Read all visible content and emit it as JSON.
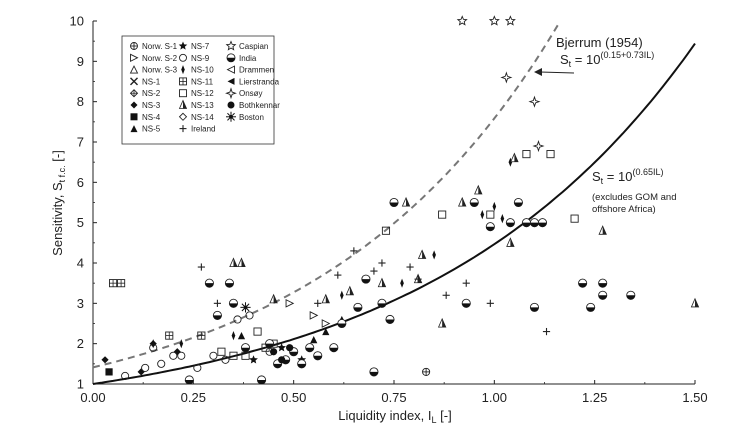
{
  "chart_data": {
    "type": "scatter",
    "xlabel": "Liquidity index, I",
    "xlabel_sub": "L",
    "xlabel_unit": " [-]",
    "ylabel": "Sensitivity, S",
    "ylabel_sub": "t f.c.",
    "ylabel_unit": " [-]",
    "xlim": [
      0,
      1.5
    ],
    "ylim": [
      1,
      10
    ],
    "x_ticks": [
      "0.00",
      "0.25",
      "0.50",
      "0.75",
      "1.00",
      "1.25",
      "1.50"
    ],
    "y_ticks": [
      "1",
      "2",
      "3",
      "4",
      "5",
      "6",
      "7",
      "8",
      "9",
      "10"
    ],
    "grid": false,
    "legend_position": "top-left",
    "legend": {
      "col1": [
        {
          "label": "Norw. S-1",
          "marker": "circle-plus"
        },
        {
          "label": "Norw. S-2",
          "marker": "triangle-right"
        },
        {
          "label": "Norw. S-3",
          "marker": "triangle-up"
        },
        {
          "label": "NS-1",
          "marker": "x"
        },
        {
          "label": "NS-2",
          "marker": "diamond-plus"
        },
        {
          "label": "NS-3",
          "marker": "diamond-filled"
        },
        {
          "label": "NS-4",
          "marker": "square-filled"
        },
        {
          "label": "NS-5",
          "marker": "triangle-filled"
        }
      ],
      "col2": [
        {
          "label": "NS-7",
          "marker": "star-filled"
        },
        {
          "label": "NS-9",
          "marker": "circle-open"
        },
        {
          "label": "NS-10",
          "marker": "diamond-thin"
        },
        {
          "label": "NS-11",
          "marker": "square-grid"
        },
        {
          "label": "NS-12",
          "marker": "square-open"
        },
        {
          "label": "NS-13",
          "marker": "triangle-half"
        },
        {
          "label": "NS-14",
          "marker": "diamond-open"
        },
        {
          "label": "Ireland",
          "marker": "plus"
        }
      ],
      "col3": [
        {
          "label": "Caspian",
          "marker": "star-open"
        },
        {
          "label": "India",
          "marker": "circle-half"
        },
        {
          "label": "Drammen",
          "marker": "triangle-left"
        },
        {
          "label": "Lierstranda",
          "marker": "triangle-left-filled"
        },
        {
          "label": "Onsøy",
          "marker": "star-diamond"
        },
        {
          "label": "Bothkennar",
          "marker": "circle-filled"
        },
        {
          "label": "Boston",
          "marker": "sun"
        }
      ]
    },
    "curves": [
      {
        "name": "Bjerrum (1954)",
        "label": "Bjerrum (1954)",
        "formula_prefix": "S",
        "formula_sub": "t",
        "formula_mid": " = 10",
        "formula_sup": "(0.15+0.73IL)",
        "style": "dashed",
        "coef_a": 0.15,
        "coef_b": 0.73
      },
      {
        "name": "St = 10^(0.65IL)",
        "formula_prefix": "S",
        "formula_sub": "t",
        "formula_mid": " = 10",
        "formula_sup": "(0.65IL)",
        "note_line1": "(excludes GOM and",
        "note_line2": "offshore Africa)",
        "style": "solid",
        "coef_a": 0,
        "coef_b": 0.65
      }
    ],
    "series": [
      {
        "name": "Norw. S-1",
        "marker": "circle-plus",
        "points": [
          [
            0.83,
            1.3
          ]
        ]
      },
      {
        "name": "Norw. S-2",
        "marker": "triangle-right",
        "points": [
          [
            0.49,
            3.0
          ],
          [
            0.55,
            2.7
          ],
          [
            0.58,
            2.5
          ]
        ]
      },
      {
        "name": "NS-3",
        "marker": "diamond-filled",
        "points": [
          [
            0.03,
            1.6
          ],
          [
            0.12,
            1.3
          ],
          [
            0.15,
            2.0
          ],
          [
            0.21,
            1.8
          ]
        ]
      },
      {
        "name": "NS-4",
        "marker": "square-filled",
        "points": [
          [
            0.04,
            1.3
          ]
        ]
      },
      {
        "name": "NS-5",
        "marker": "triangle-filled",
        "points": [
          [
            0.37,
            2.2
          ],
          [
            0.55,
            2.1
          ],
          [
            0.58,
            2.3
          ],
          [
            0.62,
            2.6
          ]
        ]
      },
      {
        "name": "NS-7",
        "marker": "star-filled",
        "points": [
          [
            0.4,
            1.6
          ],
          [
            0.47,
            1.9
          ],
          [
            0.52,
            1.6
          ]
        ]
      },
      {
        "name": "NS-9",
        "marker": "circle-open",
        "points": [
          [
            0.08,
            1.2
          ],
          [
            0.13,
            1.4
          ],
          [
            0.15,
            1.9
          ],
          [
            0.17,
            1.5
          ],
          [
            0.2,
            1.7
          ],
          [
            0.22,
            1.7
          ],
          [
            0.26,
            1.4
          ],
          [
            0.3,
            1.7
          ],
          [
            0.33,
            1.6
          ],
          [
            0.36,
            2.6
          ],
          [
            0.39,
            2.7
          ],
          [
            0.44,
            1.8
          ]
        ]
      },
      {
        "name": "NS-10",
        "marker": "diamond-thin",
        "points": [
          [
            0.15,
            2.0
          ],
          [
            0.22,
            2.0
          ],
          [
            0.35,
            2.2
          ],
          [
            0.62,
            3.2
          ],
          [
            0.77,
            3.5
          ],
          [
            0.85,
            4.2
          ],
          [
            0.97,
            5.2
          ],
          [
            1.0,
            5.4
          ],
          [
            1.02,
            5.1
          ],
          [
            1.04,
            6.5
          ]
        ]
      },
      {
        "name": "NS-11",
        "marker": "square-grid",
        "points": [
          [
            0.05,
            3.5
          ],
          [
            0.07,
            3.5
          ],
          [
            0.19,
            2.2
          ],
          [
            0.27,
            2.2
          ]
        ]
      },
      {
        "name": "NS-12",
        "marker": "square-open",
        "points": [
          [
            0.32,
            1.8
          ],
          [
            0.35,
            1.7
          ],
          [
            0.38,
            1.7
          ],
          [
            0.41,
            2.3
          ],
          [
            0.43,
            1.9
          ],
          [
            0.45,
            2.0
          ],
          [
            0.73,
            4.8
          ],
          [
            0.87,
            5.2
          ],
          [
            0.99,
            5.2
          ],
          [
            1.08,
            6.7
          ],
          [
            1.14,
            6.7
          ],
          [
            1.2,
            5.1
          ]
        ]
      },
      {
        "name": "NS-13",
        "marker": "triangle-half",
        "points": [
          [
            0.35,
            4.0
          ],
          [
            0.37,
            4.0
          ],
          [
            0.45,
            3.1
          ],
          [
            0.58,
            3.1
          ],
          [
            0.64,
            3.3
          ],
          [
            0.72,
            3.5
          ],
          [
            0.78,
            5.5
          ],
          [
            0.81,
            3.6
          ],
          [
            0.82,
            4.2
          ],
          [
            0.87,
            2.5
          ],
          [
            0.92,
            5.5
          ],
          [
            0.96,
            5.8
          ],
          [
            1.04,
            4.5
          ],
          [
            1.05,
            6.6
          ],
          [
            1.27,
            4.8
          ],
          [
            1.5,
            3.0
          ]
        ]
      },
      {
        "name": "Ireland",
        "marker": "plus",
        "points": [
          [
            0.27,
            3.9
          ],
          [
            0.31,
            3.0
          ],
          [
            0.56,
            3.0
          ],
          [
            0.61,
            3.7
          ],
          [
            0.65,
            4.3
          ],
          [
            0.7,
            3.8
          ],
          [
            0.72,
            4.0
          ],
          [
            0.79,
            3.9
          ],
          [
            0.81,
            3.6
          ],
          [
            0.88,
            3.2
          ],
          [
            0.99,
            3.0
          ],
          [
            1.13,
            2.3
          ],
          [
            0.93,
            3.5
          ]
        ]
      },
      {
        "name": "Caspian",
        "marker": "star-open",
        "points": [
          [
            0.92,
            10.0
          ],
          [
            1.0,
            10.0
          ],
          [
            1.04,
            10.0
          ]
        ]
      },
      {
        "name": "India",
        "marker": "circle-half",
        "points": [
          [
            0.24,
            1.1
          ],
          [
            0.29,
            3.5
          ],
          [
            0.31,
            2.7
          ],
          [
            0.34,
            3.5
          ],
          [
            0.35,
            3.0
          ],
          [
            0.38,
            1.9
          ],
          [
            0.42,
            1.1
          ],
          [
            0.44,
            2.0
          ],
          [
            0.46,
            1.5
          ],
          [
            0.48,
            1.6
          ],
          [
            0.5,
            1.8
          ],
          [
            0.52,
            1.5
          ],
          [
            0.54,
            1.9
          ],
          [
            0.56,
            1.7
          ],
          [
            0.6,
            1.9
          ],
          [
            0.62,
            2.5
          ],
          [
            0.66,
            2.9
          ],
          [
            0.68,
            3.6
          ],
          [
            0.7,
            1.3
          ],
          [
            0.72,
            3.0
          ],
          [
            0.74,
            2.6
          ],
          [
            0.75,
            5.5
          ],
          [
            0.93,
            3.0
          ],
          [
            0.95,
            5.5
          ],
          [
            0.99,
            4.9
          ],
          [
            1.04,
            5.0
          ],
          [
            1.06,
            5.5
          ],
          [
            1.08,
            5.0
          ],
          [
            1.1,
            5.0
          ],
          [
            1.12,
            5.0
          ],
          [
            1.1,
            2.9
          ],
          [
            1.22,
            3.5
          ],
          [
            1.24,
            2.9
          ],
          [
            1.27,
            3.5
          ],
          [
            1.27,
            3.2
          ],
          [
            1.34,
            3.2
          ]
        ]
      },
      {
        "name": "Onsøy",
        "marker": "star-diamond",
        "points": [
          [
            1.03,
            8.6
          ],
          [
            1.1,
            8.0
          ],
          [
            1.11,
            6.9
          ]
        ]
      },
      {
        "name": "Bothkennar",
        "marker": "circle-filled",
        "points": [
          [
            0.45,
            1.8
          ],
          [
            0.47,
            1.6
          ],
          [
            0.49,
            1.9
          ]
        ]
      },
      {
        "name": "Boston",
        "marker": "sun",
        "points": [
          [
            0.38,
            2.9
          ]
        ]
      }
    ]
  }
}
